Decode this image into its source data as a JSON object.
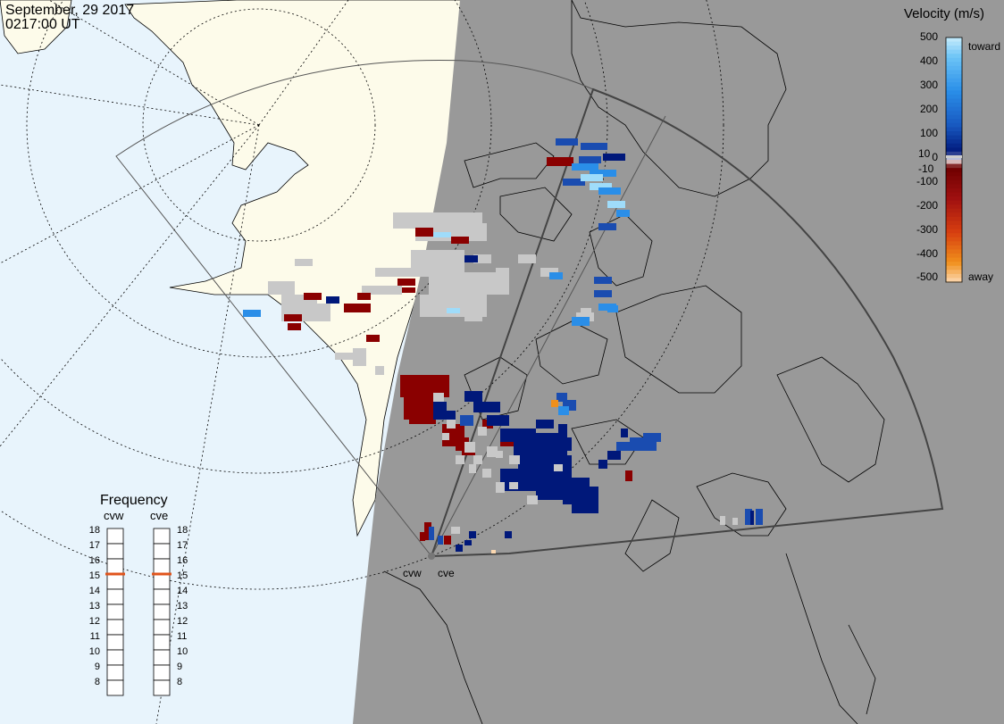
{
  "header": {
    "date": "September, 29 2017",
    "time": "0217:00 UT"
  },
  "legend": {
    "title": "Velocity (m/s)",
    "ticks": [
      "500",
      "400",
      "300",
      "200",
      "100",
      "10",
      "0",
      "-10",
      "-100",
      "-200",
      "-300",
      "-400",
      "-500"
    ],
    "toward_label": "toward",
    "away_label": "away"
  },
  "frequency": {
    "title": "Frequency",
    "columns": [
      {
        "label": "cvw",
        "value": 15
      },
      {
        "label": "cve",
        "value": 15
      }
    ],
    "scale": [
      "18",
      "17",
      "16",
      "15",
      "14",
      "13",
      "12",
      "11",
      "10",
      "9",
      "8"
    ]
  },
  "radars": [
    {
      "label": "cvw"
    },
    {
      "label": "cve"
    }
  ],
  "colors": {
    "ocean": "#e8f4fc",
    "land": "#fdfbea",
    "night": "#999999",
    "toward_dark": "#00187a",
    "toward_light": "#9fdcfa",
    "away_dark": "#8a0000",
    "away_light": "#fcd8b0",
    "ground_scatter": "#c8c8c8",
    "frequency_marker": "#e0541c"
  }
}
